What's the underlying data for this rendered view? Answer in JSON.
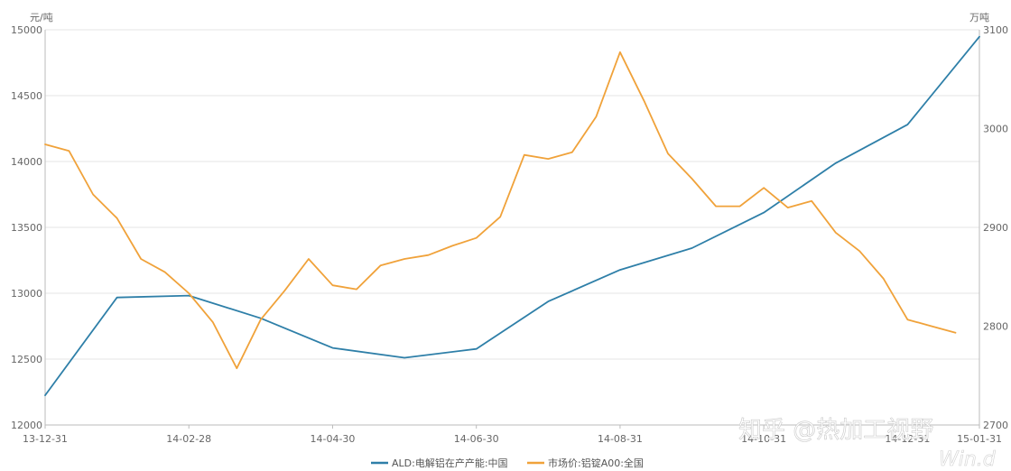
{
  "chart_data": {
    "type": "line",
    "y_left_unit": "元/吨",
    "y_right_unit": "万吨",
    "ylim_left": [
      12000,
      15000
    ],
    "ylim_right": [
      2700,
      3100
    ],
    "yticks_left": [
      "15000",
      "14500",
      "14000",
      "13500",
      "13000",
      "12500",
      "12000"
    ],
    "yticks_right": [
      "3100",
      "3000",
      "2900",
      "2800",
      "2700"
    ],
    "x_tick_labels": [
      "13-12-31",
      "14-02-28",
      "14-04-30",
      "14-06-30",
      "14-08-31",
      "14-10-31",
      "14-12-31",
      "15-01-31"
    ],
    "grid": true,
    "legend_position": "bottom",
    "series": [
      {
        "name": "ALD:电解铝在产产能:中国",
        "axis": "right",
        "color": "#2e7fa8",
        "x": [
          0,
          3,
          6,
          9,
          12,
          15,
          18,
          21,
          24,
          27,
          30,
          33,
          36,
          39
        ],
        "values": [
          2730,
          2829,
          2831,
          2808,
          2778,
          2768,
          2777,
          2825,
          2857,
          2879,
          2915,
          2965,
          3004,
          3093
        ]
      },
      {
        "name": "市场价:铝锭A00:全国",
        "axis": "left",
        "color": "#f0a23a",
        "x": [
          0,
          1,
          2,
          3,
          4,
          5,
          6,
          7,
          8,
          9,
          10,
          11,
          12,
          13,
          14,
          15,
          16,
          17,
          18,
          19,
          20,
          21,
          22,
          23,
          24,
          25,
          26,
          27,
          28,
          29,
          30,
          31,
          32,
          33,
          34,
          35,
          36,
          37,
          38
        ],
        "values": [
          14130,
          14080,
          13750,
          13570,
          13260,
          13160,
          13000,
          12780,
          12430,
          12800,
          13020,
          13260,
          13060,
          13030,
          13210,
          13260,
          13290,
          13360,
          13420,
          13580,
          14050,
          14020,
          14070,
          14340,
          14830,
          14460,
          14060,
          13870,
          13660,
          13660,
          13800,
          13650,
          13700,
          13460,
          13320,
          13110,
          12800,
          12750,
          12700
        ]
      }
    ]
  },
  "watermark": {
    "main": "知乎 @热加工视野",
    "corner": "Win.d"
  }
}
